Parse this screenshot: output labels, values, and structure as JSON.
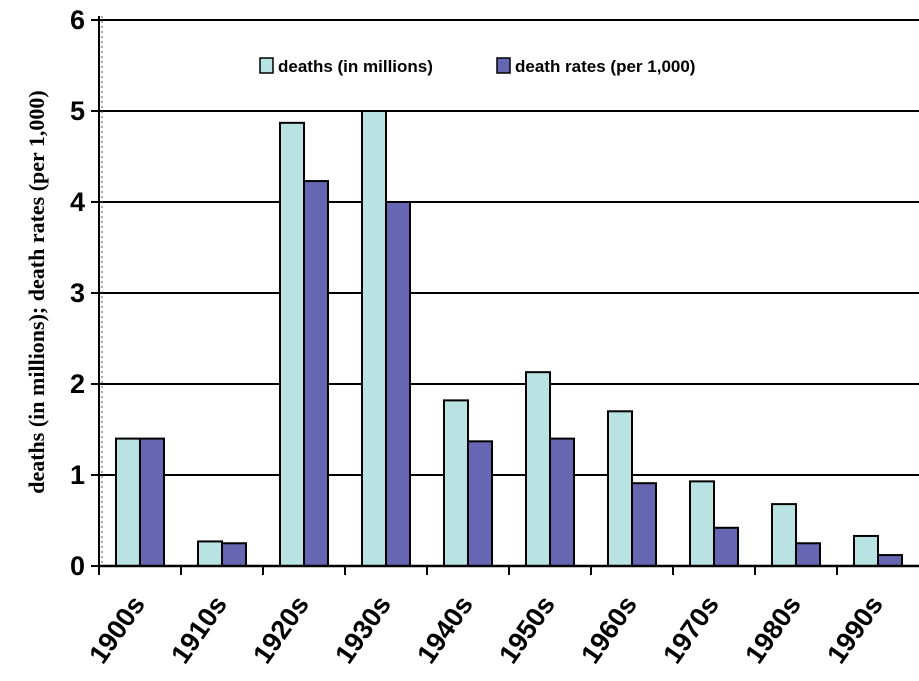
{
  "chart_data": {
    "type": "bar",
    "title": "",
    "xlabel": "",
    "ylabel": "deaths (in millions); death rates (per 1,000)",
    "categories": [
      "1900s",
      "1910s",
      "1920s",
      "1930s",
      "1940s",
      "1950s",
      "1960s",
      "1970s",
      "1980s",
      "1990s"
    ],
    "series": [
      {
        "name": "deaths (in millions)",
        "color": "#b9e3e3",
        "values": [
          1.4,
          0.27,
          4.87,
          5.0,
          1.82,
          2.13,
          1.7,
          0.93,
          0.68,
          0.33
        ]
      },
      {
        "name": "death rates (per 1,000)",
        "color": "#6666b3",
        "values": [
          1.4,
          0.25,
          4.23,
          4.0,
          1.37,
          1.4,
          0.91,
          0.42,
          0.25,
          0.12
        ]
      }
    ],
    "ylim": [
      0,
      6
    ],
    "yticks": [
      0,
      1,
      2,
      3,
      4,
      5,
      6
    ],
    "grid": true,
    "legend": "top-center"
  }
}
